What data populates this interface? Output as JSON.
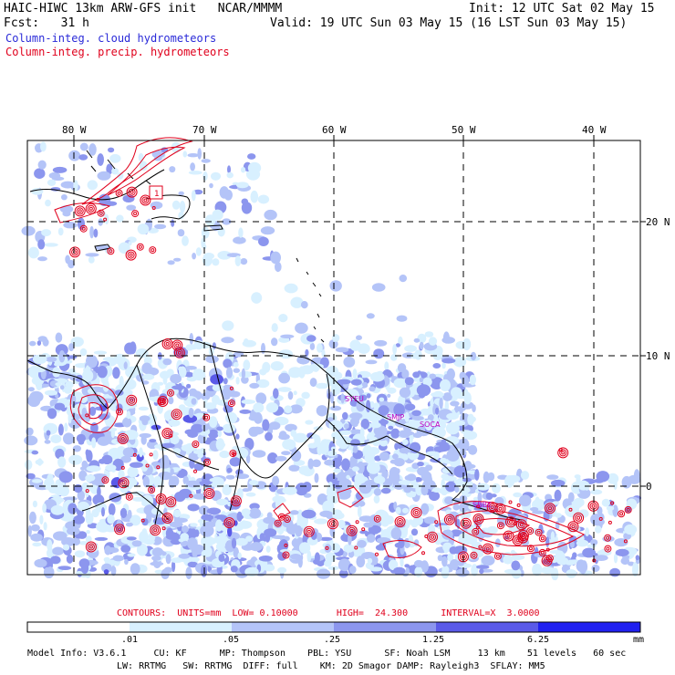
{
  "header": {
    "left_line1": "HAIC-HIWC 13km ARW-GFS init   NCAR/MMMM",
    "left_line2": "Fcst:   31 h",
    "right_line1": "Init: 12 UTC Sat 02 May 15",
    "right_line2": "Valid: 19 UTC Sun 03 May 15 (16 LST Sun 03 May 15)",
    "legend_cloud": "Column-integ. cloud hydrometeors",
    "legend_precip": "Column-integ. precip. hydrometeors",
    "legend_cloud_color": "#2a2ad8",
    "legend_precip_color": "#e0001c"
  },
  "map": {
    "lon_labels": [
      "80 W",
      "70 W",
      "60 W",
      "50 W",
      "40 W"
    ],
    "lat_labels": [
      "20 N",
      "10 N",
      "0"
    ],
    "station_labels": [
      "SYEU",
      "SMJP",
      "SOCA",
      "SBBE"
    ],
    "contour_label": "1",
    "land_fill": "#ffffff",
    "coast_color": "#000000",
    "precip_color": "#e0001c",
    "station_label_color": "#c000c0"
  },
  "contours_info": "CONTOURS:  UNITS=mm  LOW= 0.10000       HIGH=  24.300      INTERVAL=X  3.0000",
  "colorbar": {
    "ticks": [
      ".01",
      ".05",
      ".25",
      "1.25",
      "6.25"
    ],
    "unit": "mm",
    "colors": [
      "#ffffff",
      "#d8f0ff",
      "#b4c4f8",
      "#8c96ee",
      "#5a5ae8",
      "#2020f0"
    ]
  },
  "model_info": {
    "line1": "Model Info: V3.6.1     CU: KF      MP: Thompson    PBL: YSU      SF: Noah LSM     13 km    51 levels   60 sec",
    "line2": "LW: RRTMG   SW: RRTMG  DIFF: full    KM: 2D Smagor DAMP: Rayleigh3  SFLAY: MM5"
  }
}
